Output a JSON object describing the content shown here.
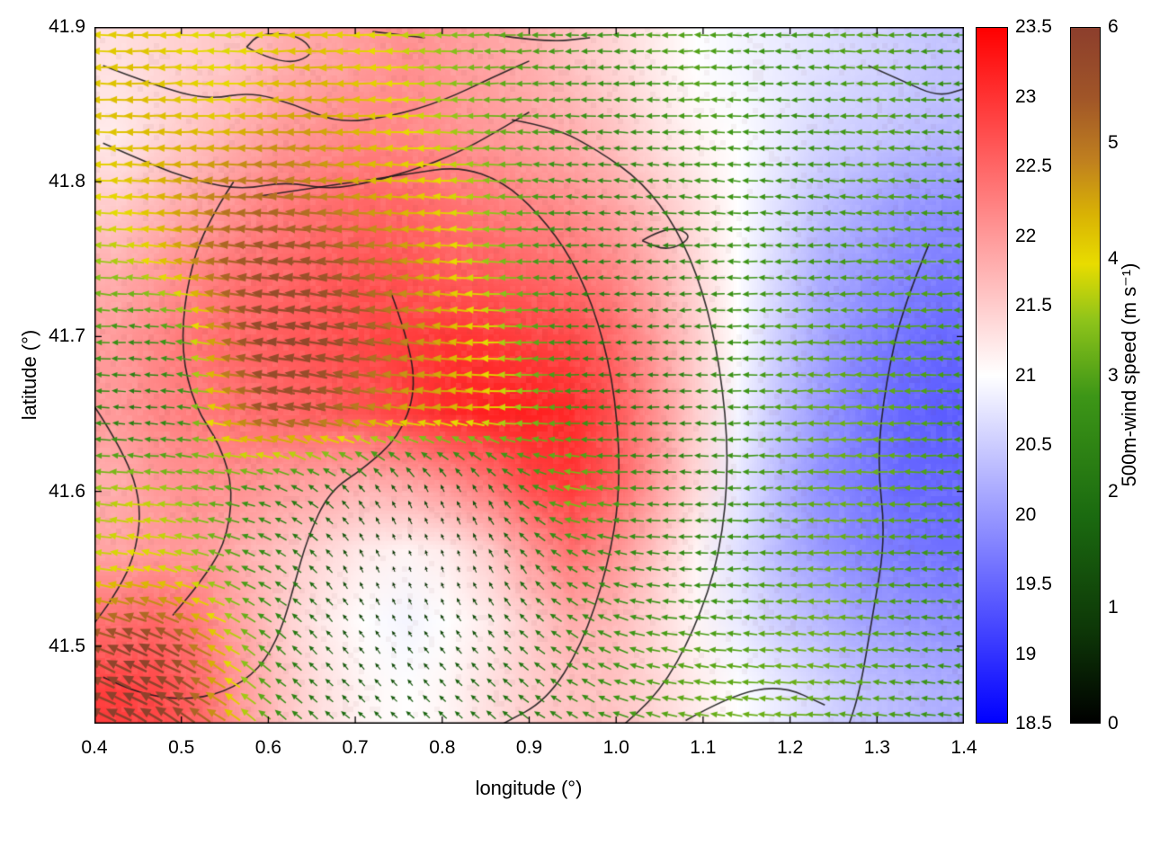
{
  "chart_data": {
    "type": "heatmap",
    "overlay": "vector_field",
    "title": "",
    "xlabel": "longitude (°)",
    "ylabel": "latitude (°)",
    "x_ticks": [
      "0.4",
      "0.5",
      "0.6",
      "0.7",
      "0.8",
      "0.9",
      "1.0",
      "1.1",
      "1.2",
      "1.3",
      "1.4"
    ],
    "y_ticks": [
      "41.5",
      "41.6",
      "41.7",
      "41.8",
      "41.9"
    ],
    "x_range": [
      0.4,
      1.4
    ],
    "y_range": [
      41.45,
      41.9
    ],
    "grid_lons": [
      0.4,
      0.45,
      0.5,
      0.55,
      0.6,
      0.65,
      0.7,
      0.75,
      0.8,
      0.85,
      0.9,
      0.95,
      1.0,
      1.05,
      1.1,
      1.15,
      1.2,
      1.25,
      1.3,
      1.35,
      1.4
    ],
    "grid_lats": [
      41.9,
      41.85,
      41.8,
      41.75,
      41.7,
      41.65,
      41.6,
      41.55,
      41.5,
      41.45
    ],
    "background_values": [
      [
        21.3,
        21.4,
        21.5,
        21.6,
        21.8,
        21.9,
        22.0,
        22.1,
        22.0,
        21.9,
        21.8,
        21.6,
        21.4,
        21.2,
        21.0,
        20.9,
        20.8,
        20.7,
        20.6,
        20.5,
        20.4
      ],
      [
        21.2,
        21.4,
        21.6,
        21.8,
        22.0,
        22.1,
        22.2,
        22.2,
        22.1,
        22.0,
        21.9,
        21.8,
        21.6,
        21.3,
        21.1,
        21.0,
        20.8,
        20.6,
        20.5,
        20.4,
        20.3
      ],
      [
        21.5,
        21.7,
        21.9,
        22.1,
        22.3,
        22.4,
        22.5,
        22.5,
        22.4,
        22.3,
        22.2,
        22.1,
        21.9,
        21.6,
        21.3,
        21.0,
        20.7,
        20.4,
        20.2,
        20.0,
        19.9
      ],
      [
        21.8,
        22.0,
        22.2,
        22.4,
        22.5,
        22.6,
        22.7,
        22.7,
        22.6,
        22.6,
        22.5,
        22.4,
        22.2,
        21.8,
        21.4,
        21.0,
        20.6,
        20.2,
        20.0,
        19.8,
        19.7
      ],
      [
        22.0,
        22.2,
        22.4,
        22.5,
        22.6,
        22.7,
        22.8,
        22.9,
        23.0,
        23.0,
        22.9,
        22.8,
        22.5,
        22.0,
        21.5,
        21.0,
        20.5,
        20.1,
        19.8,
        19.6,
        19.5
      ],
      [
        22.0,
        22.2,
        22.3,
        22.4,
        22.5,
        22.6,
        22.7,
        22.9,
        23.1,
        23.2,
        23.2,
        23.1,
        22.7,
        22.1,
        21.5,
        20.9,
        20.4,
        20.0,
        19.7,
        19.5,
        19.4
      ],
      [
        21.8,
        22.0,
        22.1,
        22.1,
        22.0,
        21.9,
        21.8,
        21.9,
        22.1,
        22.4,
        22.8,
        23.0,
        22.6,
        22.0,
        21.4,
        20.8,
        20.3,
        19.9,
        19.7,
        19.5,
        19.5
      ],
      [
        21.9,
        22.0,
        22.0,
        21.8,
        21.6,
        21.4,
        21.2,
        21.1,
        21.2,
        21.5,
        22.0,
        22.4,
        22.1,
        21.6,
        21.1,
        20.7,
        20.3,
        20.0,
        19.8,
        19.7,
        19.6
      ],
      [
        22.4,
        22.5,
        22.3,
        21.9,
        21.5,
        21.2,
        21.0,
        20.9,
        21.0,
        21.2,
        21.5,
        21.8,
        21.7,
        21.4,
        21.1,
        20.8,
        20.5,
        20.3,
        20.1,
        20.0,
        19.9
      ],
      [
        22.9,
        22.8,
        22.5,
        22.0,
        21.6,
        21.3,
        21.1,
        21.0,
        21.1,
        21.3,
        21.5,
        21.6,
        21.6,
        21.4,
        21.2,
        21.0,
        20.8,
        20.6,
        20.4,
        20.3,
        20.2
      ]
    ],
    "wind_speed": [
      [
        4.0,
        4.2,
        4.0,
        3.8,
        4.0,
        4.2,
        4.0,
        3.8,
        3.5,
        3.2,
        3.0,
        2.8,
        2.8,
        3.0,
        3.0,
        2.8,
        2.8,
        3.0,
        3.0,
        2.8,
        2.5
      ],
      [
        4.2,
        4.3,
        4.2,
        4.0,
        4.3,
        4.5,
        4.3,
        4.0,
        3.6,
        3.2,
        3.0,
        2.8,
        2.6,
        2.8,
        3.0,
        2.8,
        2.6,
        2.8,
        3.0,
        2.8,
        2.5
      ],
      [
        4.0,
        4.2,
        4.5,
        4.8,
        5.0,
        4.8,
        4.5,
        4.2,
        4.0,
        3.5,
        3.0,
        2.6,
        2.4,
        2.5,
        2.8,
        2.8,
        2.6,
        2.8,
        3.0,
        2.8,
        2.6
      ],
      [
        3.5,
        3.8,
        4.5,
        5.2,
        5.5,
        5.5,
        5.2,
        4.8,
        4.2,
        3.6,
        3.0,
        2.5,
        2.2,
        2.3,
        2.6,
        2.8,
        2.8,
        2.8,
        3.0,
        3.0,
        2.8
      ],
      [
        3.0,
        2.5,
        3.0,
        5.0,
        5.8,
        5.8,
        5.5,
        5.0,
        4.5,
        4.0,
        3.2,
        2.5,
        2.0,
        2.2,
        2.5,
        2.8,
        3.0,
        3.0,
        3.0,
        3.0,
        2.8
      ],
      [
        2.5,
        2.0,
        2.5,
        4.5,
        5.5,
        5.5,
        5.0,
        4.5,
        4.5,
        4.2,
        3.5,
        2.8,
        2.2,
        2.2,
        2.5,
        2.8,
        3.0,
        3.2,
        3.2,
        3.0,
        2.8
      ],
      [
        3.5,
        3.8,
        3.5,
        3.0,
        2.5,
        2.0,
        1.5,
        1.2,
        1.0,
        1.5,
        2.5,
        3.5,
        3.0,
        2.5,
        2.5,
        2.8,
        3.0,
        3.2,
        3.2,
        3.0,
        2.8
      ],
      [
        3.8,
        4.0,
        3.8,
        3.2,
        2.5,
        1.8,
        1.0,
        0.6,
        0.6,
        1.0,
        1.8,
        2.5,
        2.5,
        2.5,
        2.6,
        2.8,
        3.0,
        3.2,
        3.0,
        2.8,
        2.6
      ],
      [
        5.5,
        6.0,
        5.5,
        4.0,
        2.8,
        1.8,
        1.2,
        1.0,
        1.2,
        1.5,
        2.0,
        2.5,
        2.8,
        3.0,
        3.0,
        3.0,
        3.2,
        3.2,
        3.0,
        2.8,
        2.6
      ],
      [
        6.0,
        6.0,
        5.8,
        4.5,
        3.0,
        2.2,
        1.8,
        1.6,
        1.8,
        2.0,
        2.2,
        2.5,
        2.8,
        3.0,
        3.2,
        3.2,
        3.2,
        3.0,
        3.0,
        2.8,
        2.6
      ]
    ],
    "wind_dir_deg": [
      [
        180,
        180,
        180,
        180,
        180,
        180,
        180,
        180,
        180,
        180,
        180,
        180,
        180,
        180,
        180,
        180,
        180,
        180,
        180,
        180,
        180
      ],
      [
        180,
        180,
        180,
        180,
        180,
        180,
        180,
        180,
        180,
        180,
        180,
        180,
        180,
        180,
        180,
        180,
        180,
        180,
        180,
        180,
        180
      ],
      [
        176,
        176,
        176,
        176,
        176,
        176,
        176,
        176,
        176,
        176,
        176,
        176,
        176,
        176,
        176,
        176,
        176,
        176,
        176,
        176,
        176
      ],
      [
        174,
        174,
        172,
        172,
        172,
        172,
        172,
        174,
        176,
        178,
        180,
        180,
        180,
        180,
        180,
        180,
        180,
        180,
        180,
        180,
        180
      ],
      [
        178,
        176,
        172,
        170,
        170,
        170,
        170,
        172,
        175,
        178,
        180,
        180,
        180,
        180,
        180,
        180,
        180,
        180,
        180,
        180,
        180
      ],
      [
        176,
        174,
        172,
        170,
        170,
        170,
        172,
        174,
        176,
        178,
        180,
        180,
        180,
        180,
        180,
        180,
        180,
        180,
        180,
        180,
        180
      ],
      [
        174,
        174,
        175,
        170,
        160,
        145,
        130,
        120,
        115,
        120,
        150,
        170,
        178,
        180,
        180,
        180,
        180,
        180,
        180,
        180,
        180
      ],
      [
        170,
        168,
        165,
        160,
        150,
        135,
        118,
        110,
        108,
        115,
        130,
        150,
        165,
        175,
        180,
        180,
        180,
        180,
        180,
        180,
        180
      ],
      [
        158,
        155,
        152,
        148,
        142,
        135,
        128,
        125,
        128,
        132,
        140,
        150,
        160,
        168,
        172,
        175,
        175,
        175,
        175,
        175,
        175
      ],
      [
        152,
        150,
        148,
        145,
        142,
        140,
        138,
        138,
        140,
        142,
        145,
        150,
        158,
        165,
        170,
        172,
        175,
        175,
        175,
        175,
        175
      ]
    ],
    "contours": [
      [
        [
          0.41,
          41.875
        ],
        [
          0.47,
          41.862
        ],
        [
          0.53,
          41.853
        ],
        [
          0.58,
          41.858
        ],
        [
          0.63,
          41.85
        ],
        [
          0.68,
          41.838
        ],
        [
          0.74,
          41.842
        ],
        [
          0.8,
          41.852
        ],
        [
          0.86,
          41.868
        ],
        [
          0.9,
          41.878
        ]
      ],
      [
        [
          0.575,
          41.887
        ],
        [
          0.615,
          41.875
        ],
        [
          0.655,
          41.882
        ],
        [
          0.635,
          41.895
        ],
        [
          0.59,
          41.896
        ],
        [
          0.575,
          41.887
        ]
      ],
      [
        [
          0.41,
          41.825
        ],
        [
          0.47,
          41.81
        ],
        [
          0.52,
          41.8
        ],
        [
          0.57,
          41.795
        ],
        [
          0.62,
          41.8
        ],
        [
          0.67,
          41.795
        ],
        [
          0.72,
          41.8
        ],
        [
          0.78,
          41.81
        ],
        [
          0.83,
          41.822
        ],
        [
          0.87,
          41.835
        ],
        [
          0.9,
          41.845
        ]
      ],
      [
        [
          0.88,
          41.84
        ],
        [
          0.93,
          41.835
        ],
        [
          0.98,
          41.82
        ],
        [
          1.03,
          41.8
        ],
        [
          1.07,
          41.77
        ],
        [
          1.1,
          41.73
        ],
        [
          1.12,
          41.68
        ],
        [
          1.13,
          41.62
        ],
        [
          1.12,
          41.56
        ],
        [
          1.09,
          41.51
        ],
        [
          1.05,
          41.47
        ],
        [
          1.0,
          41.445
        ]
      ],
      [
        [
          0.58,
          41.79
        ],
        [
          0.64,
          41.795
        ],
        [
          0.7,
          41.8
        ],
        [
          0.76,
          41.805
        ],
        [
          0.82,
          41.81
        ],
        [
          0.87,
          41.8
        ],
        [
          0.91,
          41.78
        ],
        [
          0.95,
          41.75
        ],
        [
          0.98,
          41.71
        ],
        [
          1.0,
          41.66
        ],
        [
          1.005,
          41.6
        ],
        [
          0.99,
          41.55
        ],
        [
          0.96,
          41.5
        ],
        [
          0.92,
          41.465
        ],
        [
          0.87,
          41.45
        ]
      ],
      [
        [
          0.56,
          41.8
        ],
        [
          0.525,
          41.77
        ],
        [
          0.505,
          41.73
        ],
        [
          0.5,
          41.69
        ],
        [
          0.515,
          41.655
        ],
        [
          0.545,
          41.63
        ],
        [
          0.56,
          41.6
        ],
        [
          0.55,
          41.565
        ],
        [
          0.52,
          41.54
        ],
        [
          0.49,
          41.52
        ]
      ],
      [
        [
          0.74,
          41.73
        ],
        [
          0.76,
          41.7
        ],
        [
          0.77,
          41.665
        ],
        [
          0.75,
          41.635
        ],
        [
          0.71,
          41.615
        ],
        [
          0.67,
          41.6
        ],
        [
          0.645,
          41.57
        ],
        [
          0.63,
          41.54
        ],
        [
          0.615,
          41.51
        ],
        [
          0.59,
          41.485
        ],
        [
          0.55,
          41.47
        ],
        [
          0.5,
          41.465
        ],
        [
          0.45,
          41.47
        ],
        [
          0.41,
          41.48
        ]
      ],
      [
        [
          1.36,
          41.76
        ],
        [
          1.33,
          41.72
        ],
        [
          1.31,
          41.67
        ],
        [
          1.3,
          41.62
        ],
        [
          1.31,
          41.57
        ],
        [
          1.295,
          41.52
        ],
        [
          1.28,
          41.47
        ],
        [
          1.265,
          41.445
        ]
      ],
      [
        [
          1.29,
          41.875
        ],
        [
          1.33,
          41.865
        ],
        [
          1.37,
          41.855
        ],
        [
          1.4,
          41.86
        ]
      ],
      [
        [
          1.08,
          41.452
        ],
        [
          1.13,
          41.468
        ],
        [
          1.19,
          41.475
        ],
        [
          1.24,
          41.462
        ]
      ],
      [
        [
          1.03,
          41.762
        ],
        [
          1.06,
          41.772
        ],
        [
          1.09,
          41.765
        ],
        [
          1.06,
          41.755
        ],
        [
          1.03,
          41.762
        ]
      ],
      [
        [
          0.4,
          41.655
        ],
        [
          0.435,
          41.625
        ],
        [
          0.455,
          41.59
        ],
        [
          0.445,
          41.555
        ],
        [
          0.42,
          41.53
        ],
        [
          0.4,
          41.515
        ]
      ],
      [
        [
          0.72,
          41.897
        ],
        [
          0.78,
          41.893
        ]
      ],
      [
        [
          0.86,
          41.895
        ],
        [
          0.92,
          41.89
        ],
        [
          0.97,
          41.893
        ]
      ]
    ],
    "colorbars": [
      {
        "id": "temp",
        "label": "",
        "range": [
          18.5,
          23.5
        ],
        "ticks": [
          "18.5",
          "19",
          "19.5",
          "20",
          "20.5",
          "21",
          "21.5",
          "22",
          "22.5",
          "23",
          "23.5"
        ],
        "stops": [
          [
            0,
            "#0000ff"
          ],
          [
            0.5,
            "#ffffff"
          ],
          [
            1,
            "#ff0000"
          ]
        ]
      },
      {
        "id": "wind",
        "label": "500m-wind speed (m s⁻¹)",
        "range": [
          0,
          6
        ],
        "ticks": [
          "0",
          "1",
          "2",
          "3",
          "4",
          "5",
          "6"
        ],
        "stops": [
          [
            0,
            "#000000"
          ],
          [
            0.13,
            "#0d3607"
          ],
          [
            0.3,
            "#1b6b10"
          ],
          [
            0.47,
            "#3d9617"
          ],
          [
            0.58,
            "#8fc41a"
          ],
          [
            0.66,
            "#e8dc00"
          ],
          [
            0.73,
            "#d9b304"
          ],
          [
            0.81,
            "#bf7f1f"
          ],
          [
            0.9,
            "#a05528"
          ],
          [
            1,
            "#8c3e2c"
          ]
        ]
      }
    ]
  }
}
